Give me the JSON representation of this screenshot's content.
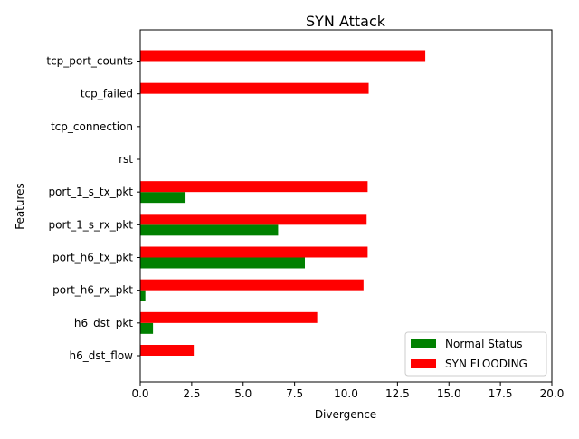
{
  "chart_data": {
    "type": "bar",
    "orientation": "horizontal",
    "title": "SYN Attack",
    "xlabel": "Divergence",
    "ylabel": "Features",
    "xlim": [
      0,
      20
    ],
    "xticks": [
      "0.0",
      "2.5",
      "5.0",
      "7.5",
      "10.0",
      "12.5",
      "15.0",
      "17.5",
      "20.0"
    ],
    "grid": false,
    "legend_position": "lower-right",
    "categories": [
      "h6_dst_flow",
      "h6_dst_pkt",
      "port_h6_rx_pkt",
      "port_h6_tx_pkt",
      "port_1_s_rx_pkt",
      "port_1_s_tx_pkt",
      "rst",
      "tcp_connection",
      "tcp_failed",
      "tcp_port_counts"
    ],
    "series": [
      {
        "name": "Normal Status",
        "color": "#008000",
        "values": [
          0.0,
          0.62,
          0.25,
          8.0,
          6.7,
          2.2,
          0.0,
          0.0,
          0.0,
          0.0
        ]
      },
      {
        "name": "SYN FLOODING",
        "color": "#ff0000",
        "values": [
          2.6,
          8.6,
          10.85,
          11.05,
          11.0,
          11.05,
          0.0,
          0.0,
          11.1,
          13.85
        ]
      }
    ]
  }
}
